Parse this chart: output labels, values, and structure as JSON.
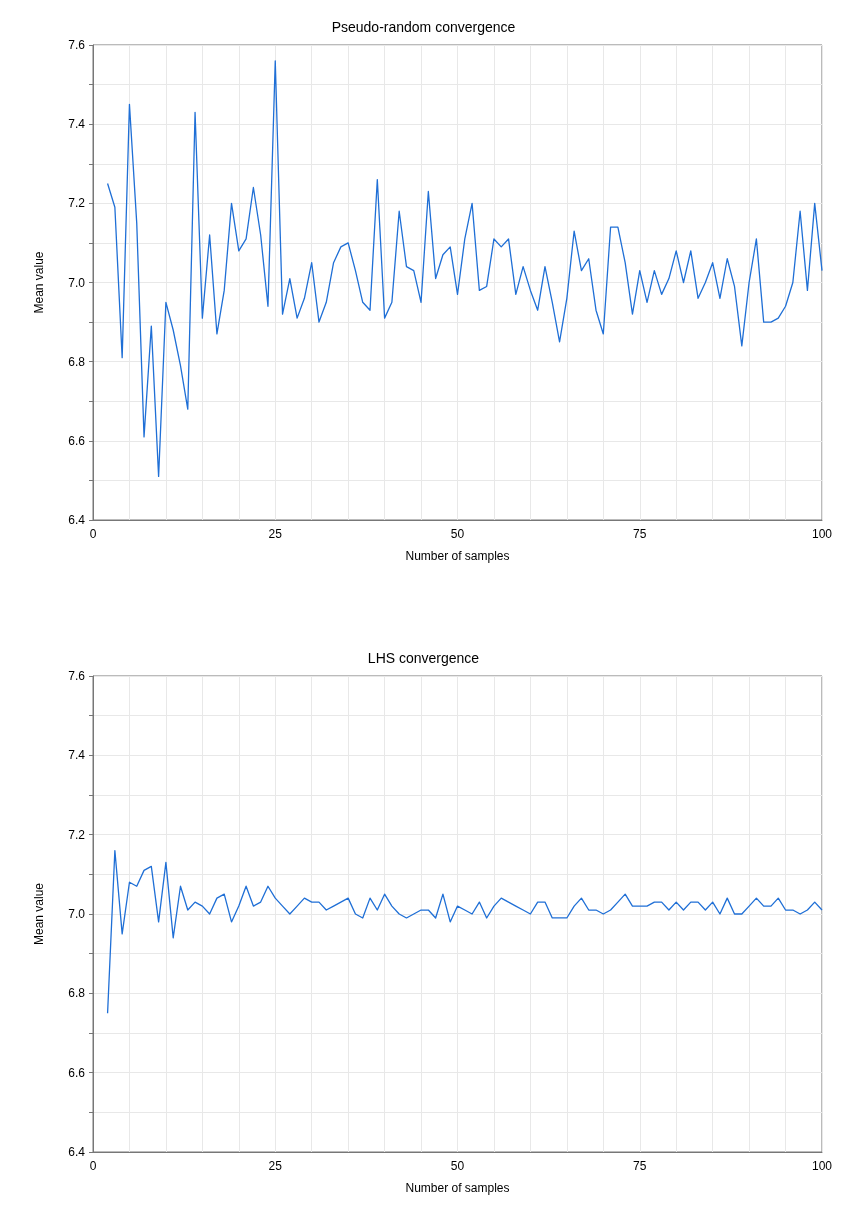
{
  "chart_data": [
    {
      "type": "line",
      "title": "Pseudo-random convergence",
      "xlabel": "Number of samples",
      "ylabel": "Mean value",
      "color": "#1f6fd6",
      "grid": true,
      "x": [
        2,
        3,
        4,
        5,
        6,
        7,
        8,
        9,
        10,
        11,
        12,
        13,
        14,
        15,
        16,
        17,
        18,
        19,
        20,
        21,
        22,
        23,
        24,
        25,
        26,
        27,
        28,
        29,
        30,
        31,
        32,
        33,
        34,
        35,
        36,
        37,
        38,
        39,
        40,
        41,
        42,
        43,
        44,
        45,
        46,
        47,
        48,
        49,
        50,
        51,
        52,
        53,
        54,
        55,
        56,
        57,
        58,
        59,
        60,
        61,
        62,
        63,
        64,
        65,
        66,
        67,
        68,
        69,
        70,
        71,
        72,
        73,
        74,
        75,
        76,
        77,
        78,
        79,
        80,
        81,
        82,
        83,
        84,
        85,
        86,
        87,
        88,
        89,
        90,
        91,
        92,
        93,
        94,
        95,
        96,
        97,
        98,
        99,
        100
      ],
      "values": [
        7.25,
        7.19,
        6.81,
        7.45,
        7.15,
        6.61,
        6.89,
        6.51,
        6.95,
        6.88,
        6.79,
        6.68,
        7.43,
        6.91,
        7.12,
        6.87,
        6.98,
        7.2,
        7.08,
        7.11,
        7.24,
        7.12,
        6.94,
        7.56,
        6.92,
        7.01,
        6.91,
        6.96,
        7.05,
        6.9,
        6.95,
        7.05,
        7.09,
        7.1,
        7.03,
        6.95,
        6.93,
        7.26,
        6.91,
        6.95,
        7.18,
        7.04,
        7.03,
        6.95,
        7.23,
        7.01,
        7.07,
        7.09,
        6.97,
        7.11,
        7.2,
        6.98,
        6.99,
        7.11,
        7.09,
        7.11,
        6.97,
        7.04,
        6.98,
        6.93,
        7.04,
        6.95,
        6.85,
        6.96,
        7.13,
        7.03,
        7.06,
        6.93,
        6.87,
        7.14,
        7.14,
        7.05,
        6.92,
        7.03,
        6.95,
        7.03,
        6.97,
        7.01,
        7.08,
        7.0,
        7.08,
        6.96,
        7.0,
        7.05,
        6.96,
        7.06,
        6.99,
        6.84,
        7.0,
        7.11,
        6.9,
        6.9,
        6.91,
        6.94,
        7.0,
        7.18,
        6.98,
        7.2,
        7.03
      ],
      "xlim": [
        0,
        100
      ],
      "ylim": [
        6.4,
        7.6
      ],
      "xticks": [
        0,
        {
          "value": 5,
          "label": null
        },
        {
          "value": 10,
          "label": null
        },
        {
          "value": 15,
          "label": null
        },
        {
          "value": 20,
          "label": null
        },
        25,
        {
          "value": 30,
          "label": null
        },
        {
          "value": 35,
          "label": null
        },
        {
          "value": 40,
          "label": null
        },
        {
          "value": 45,
          "label": null
        },
        50,
        {
          "value": 55,
          "label": null
        },
        {
          "value": 60,
          "label": null
        },
        {
          "value": 65,
          "label": null
        },
        {
          "value": 70,
          "label": null
        },
        75,
        {
          "value": 80,
          "label": null
        },
        {
          "value": 85,
          "label": null
        },
        {
          "value": 90,
          "label": null
        },
        {
          "value": 95,
          "label": null
        },
        100
      ],
      "yticks": [
        6.4,
        {
          "value": 6.5,
          "label": null
        },
        6.6,
        {
          "value": 6.7,
          "label": null
        },
        6.8,
        {
          "value": 6.9,
          "label": null
        },
        {
          "value": 7.0,
          "label": "7.0"
        },
        {
          "value": 7.1,
          "label": null
        },
        7.2,
        {
          "value": 7.3,
          "label": null
        },
        7.4,
        {
          "value": 7.5,
          "label": null
        },
        7.6
      ]
    },
    {
      "type": "line",
      "title": "LHS convergence",
      "xlabel": "Number of samples",
      "ylabel": "Mean value",
      "color": "#1f6fd6",
      "grid": true,
      "x": [
        2,
        3,
        4,
        5,
        6,
        7,
        8,
        9,
        10,
        11,
        12,
        13,
        14,
        15,
        16,
        17,
        18,
        19,
        20,
        21,
        22,
        23,
        24,
        25,
        26,
        27,
        28,
        29,
        30,
        31,
        32,
        33,
        34,
        35,
        36,
        37,
        38,
        39,
        40,
        41,
        42,
        43,
        44,
        45,
        46,
        47,
        48,
        49,
        50,
        51,
        52,
        53,
        54,
        55,
        56,
        57,
        58,
        59,
        60,
        61,
        62,
        63,
        64,
        65,
        66,
        67,
        68,
        69,
        70,
        71,
        72,
        73,
        74,
        75,
        76,
        77,
        78,
        79,
        80,
        81,
        82,
        83,
        84,
        85,
        86,
        87,
        88,
        89,
        90,
        91,
        92,
        93,
        94,
        95,
        96,
        97,
        98,
        99,
        100
      ],
      "values": [
        6.75,
        7.16,
        6.95,
        7.08,
        7.07,
        7.11,
        7.12,
        6.98,
        7.13,
        6.94,
        7.07,
        7.01,
        7.03,
        7.02,
        7.0,
        7.04,
        7.05,
        6.98,
        7.02,
        7.07,
        7.02,
        7.03,
        7.07,
        7.04,
        7.02,
        7.0,
        7.02,
        7.04,
        7.03,
        7.03,
        7.01,
        7.02,
        7.03,
        7.04,
        7.0,
        6.99,
        7.04,
        7.01,
        7.05,
        7.02,
        7.0,
        6.99,
        7.0,
        7.01,
        7.01,
        6.99,
        7.05,
        6.98,
        7.02,
        7.01,
        7.0,
        7.03,
        6.99,
        7.02,
        7.04,
        7.03,
        7.02,
        7.01,
        7.0,
        7.03,
        7.03,
        6.99,
        6.99,
        6.99,
        7.02,
        7.04,
        7.01,
        7.01,
        7.0,
        7.01,
        7.03,
        7.05,
        7.02,
        7.02,
        7.02,
        7.03,
        7.03,
        7.01,
        7.03,
        7.01,
        7.03,
        7.03,
        7.01,
        7.03,
        7.0,
        7.04,
        7.0,
        7.0,
        7.02,
        7.04,
        7.02,
        7.02,
        7.04,
        7.01,
        7.01,
        7.0,
        7.01,
        7.03,
        7.01
      ],
      "xlim": [
        0,
        100
      ],
      "ylim": [
        6.4,
        7.6
      ],
      "xticks": [
        0,
        {
          "value": 5,
          "label": null
        },
        {
          "value": 10,
          "label": null
        },
        {
          "value": 15,
          "label": null
        },
        {
          "value": 20,
          "label": null
        },
        25,
        {
          "value": 30,
          "label": null
        },
        {
          "value": 35,
          "label": null
        },
        {
          "value": 40,
          "label": null
        },
        {
          "value": 45,
          "label": null
        },
        50,
        {
          "value": 55,
          "label": null
        },
        {
          "value": 60,
          "label": null
        },
        {
          "value": 65,
          "label": null
        },
        {
          "value": 70,
          "label": null
        },
        75,
        {
          "value": 80,
          "label": null
        },
        {
          "value": 85,
          "label": null
        },
        {
          "value": 90,
          "label": null
        },
        {
          "value": 95,
          "label": null
        },
        100
      ],
      "yticks": [
        6.4,
        {
          "value": 6.5,
          "label": null
        },
        6.6,
        {
          "value": 6.7,
          "label": null
        },
        6.8,
        {
          "value": 6.9,
          "label": null
        },
        {
          "value": 7.0,
          "label": "7.0"
        },
        {
          "value": 7.1,
          "label": null
        },
        7.2,
        {
          "value": 7.3,
          "label": null
        },
        7.4,
        {
          "value": 7.5,
          "label": null
        },
        7.6
      ]
    }
  ]
}
